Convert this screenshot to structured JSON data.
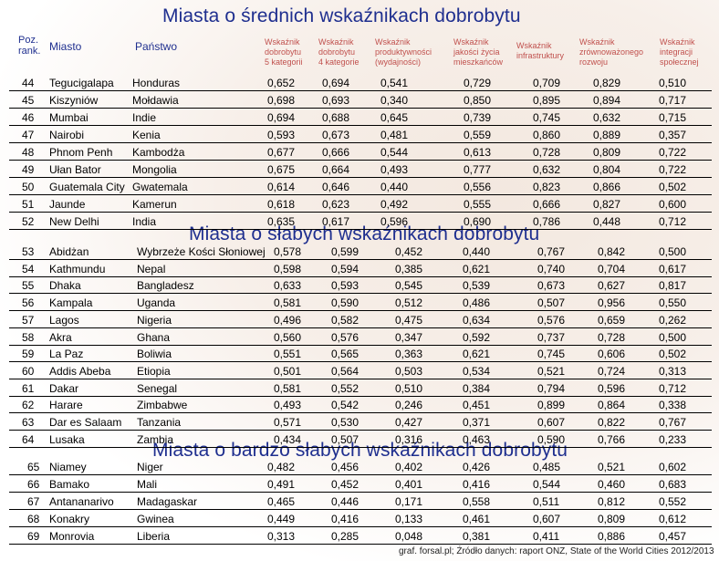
{
  "section_titles": [
    "Miasta o średnich wskaźnikach dobrobytu",
    "Miasta o słabych wskaźnikach dobrobytu",
    "Miasta o bardzo słabych wskaźnikach dobrobytu"
  ],
  "headers": {
    "rank": "Poz.\nrank.",
    "city": "Miasto",
    "country": "Państwo",
    "indicators": [
      "Wskaźnik\ndobrobytu\n5 kategorii",
      "Wskaźnik\ndobrobytu\n4 kategorie",
      "Wskaźnik\nproduktywności\n(wydajności)",
      "Wskaźnik\njakości życia\nmieszkańców",
      "Wskaźnik\ninfrastruktury",
      "Wskaźnik\nzrównoważonego\nrozwoju",
      "Wskaźnik\nintegracji\nspołecznej"
    ]
  },
  "sections": [
    {
      "rows": [
        [
          "44",
          "Tegucigalapa",
          "Honduras",
          "0,652",
          "0,694",
          "0,541",
          "0,729",
          "0,709",
          "0,829",
          "0,510"
        ],
        [
          "45",
          "Kiszyniów",
          "Mołdawia",
          "0,698",
          "0,693",
          "0,340",
          "0,850",
          "0,895",
          "0,894",
          "0,717"
        ],
        [
          "46",
          "Mumbai",
          "Indie",
          "0,694",
          "0,688",
          "0,645",
          "0,739",
          "0,745",
          "0,632",
          "0,715"
        ],
        [
          "47",
          "Nairobi",
          "Kenia",
          "0,593",
          "0,673",
          "0,481",
          "0,559",
          "0,860",
          "0,889",
          "0,357"
        ],
        [
          "48",
          "Phnom Penh",
          "Kambodża",
          "0,677",
          "0,666",
          "0,544",
          "0,613",
          "0,728",
          "0,809",
          "0,722"
        ],
        [
          "49",
          "Ułan Bator",
          "Mongolia",
          "0,675",
          "0,664",
          "0,493",
          "0,777",
          "0,632",
          "0,804",
          "0,722"
        ],
        [
          "50",
          "Guatemala City",
          "Gwatemala",
          "0,614",
          "0,646",
          "0,440",
          "0,556",
          "0,823",
          "0,866",
          "0,502"
        ],
        [
          "51",
          "Jaunde",
          "Kamerun",
          "0,618",
          "0,623",
          "0,492",
          "0,555",
          "0,666",
          "0,827",
          "0,600"
        ],
        [
          "52",
          "New Delhi",
          "India",
          "0,635",
          "0,617",
          "0,596",
          "0,690",
          "0,786",
          "0,448",
          "0,712"
        ]
      ]
    },
    {
      "rows": [
        [
          "53",
          "Abidżan",
          "Wybrzeże Kości Słoniowej",
          "0,578",
          "0,599",
          "0,452",
          "0,440",
          "0,767",
          "0,842",
          "0,500"
        ],
        [
          "54",
          "Kathmundu",
          "Nepal",
          "0,598",
          "0,594",
          "0,385",
          "0,621",
          "0,740",
          "0,704",
          "0,617"
        ],
        [
          "55",
          "Dhaka",
          "Bangladesz",
          "0,633",
          "0,593",
          "0,545",
          "0,539",
          "0,673",
          "0,627",
          "0,817"
        ],
        [
          "56",
          "Kampala",
          "Uganda",
          "0,581",
          "0,590",
          "0,512",
          "0,486",
          "0,507",
          "0,956",
          "0,550"
        ],
        [
          "57",
          "Lagos",
          "Nigeria",
          "0,496",
          "0,582",
          "0,475",
          "0,634",
          "0,576",
          "0,659",
          "0,262"
        ],
        [
          "58",
          "Akra",
          "Ghana",
          "0,560",
          "0,576",
          "0,347",
          "0,592",
          "0,737",
          "0,728",
          "0,500"
        ],
        [
          "59",
          "La Paz",
          "Boliwia",
          "0,551",
          "0,565",
          "0,363",
          "0,621",
          "0,745",
          "0,606",
          "0,502"
        ],
        [
          "60",
          "Addis Abeba",
          "Etiopia",
          "0,501",
          "0,564",
          "0,503",
          "0,534",
          "0,521",
          "0,724",
          "0,313"
        ],
        [
          "61",
          "Dakar",
          "Senegal",
          "0,581",
          "0,552",
          "0,510",
          "0,384",
          "0,794",
          "0,596",
          "0,712"
        ],
        [
          "62",
          "Harare",
          "Zimbabwe",
          "0,493",
          "0,542",
          "0,246",
          "0,451",
          "0,899",
          "0,864",
          "0,338"
        ],
        [
          "63",
          "Dar es Salaam",
          "Tanzania",
          "0,571",
          "0,530",
          "0,427",
          "0,371",
          "0,607",
          "0,822",
          "0,767"
        ],
        [
          "64",
          "Lusaka",
          "Zambia",
          "0,434",
          "0,507",
          "0,316",
          "0,463",
          "0,590",
          "0,766",
          "0,233"
        ]
      ]
    },
    {
      "rows": [
        [
          "65",
          "Niamey",
          "Niger",
          "0,482",
          "0,456",
          "0,402",
          "0,426",
          "0,485",
          "0,521",
          "0,602"
        ],
        [
          "66",
          "Bamako",
          "Mali",
          "0,491",
          "0,452",
          "0,401",
          "0,416",
          "0,544",
          "0,460",
          "0,683"
        ],
        [
          "67",
          "Antananarivo",
          "Madagaskar",
          "0,465",
          "0,446",
          "0,171",
          "0,558",
          "0,511",
          "0,812",
          "0,552"
        ],
        [
          "68",
          "Konakry",
          "Gwinea",
          "0,449",
          "0,416",
          "0,133",
          "0,461",
          "0,607",
          "0,809",
          "0,612"
        ],
        [
          "69",
          "Monrovia",
          "Liberia",
          "0,313",
          "0,285",
          "0,048",
          "0,381",
          "0,411",
          "0,886",
          "0,457"
        ]
      ]
    }
  ],
  "footer": "graf. forsal.pl; Źródło danych: raport ONZ, State of the World Cities 2012/2013",
  "colors": {
    "title": "#1f2f8f",
    "header_indicator": "#c0504d",
    "rule": "#000000"
  }
}
